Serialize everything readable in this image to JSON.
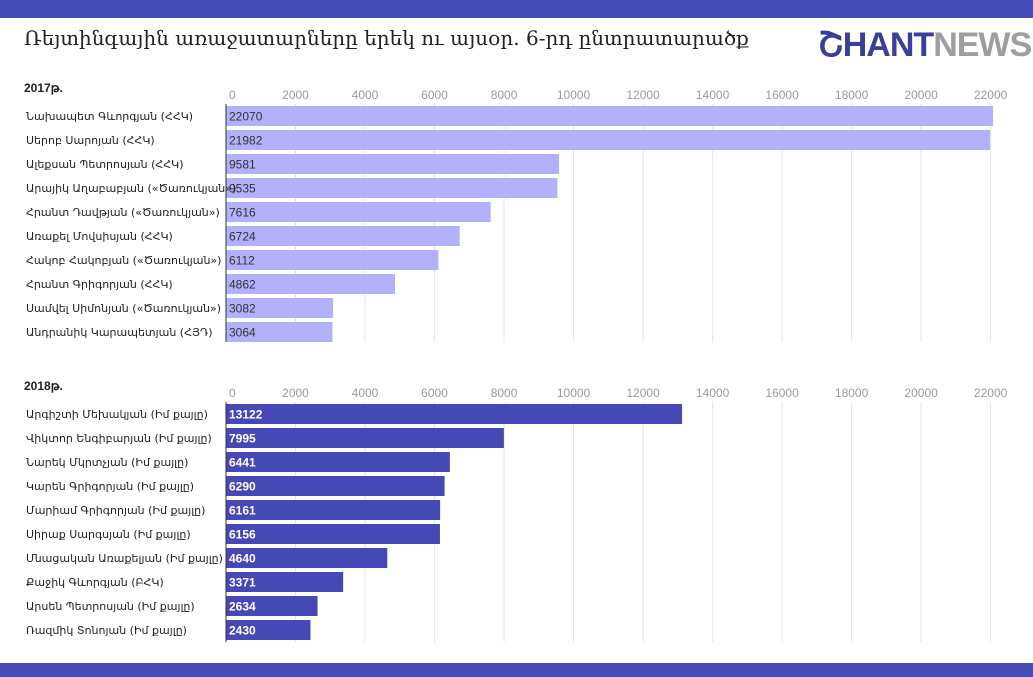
{
  "header": {
    "title": "Ռեյտինգային առաջատարները երեկ ու այսօր. 6-րդ ընտրատարածք",
    "logo_part1": "ՇHANT",
    "logo_part2": "NEWS"
  },
  "colors": {
    "bar_2017": "#b3b1fb",
    "bar_2018": "#4648b5",
    "top_bar": "#464cb7",
    "bottom_bar": "#464cb7",
    "grid": "#e6e6e6",
    "axis": "#333333",
    "value_2017": "#333333",
    "value_2018": "#ffffff"
  },
  "chart_data": [
    {
      "type": "bar",
      "orientation": "horizontal",
      "title": "2017թ.",
      "xlim": [
        0,
        22500
      ],
      "ticks": [
        0,
        2000,
        4000,
        6000,
        8000,
        10000,
        12000,
        14000,
        16000,
        18000,
        20000,
        22000
      ],
      "grid": true,
      "categories": [
        "Նախապետ Գևորգյան (ՀՀԿ)",
        "Սերոբ Սարոյան (ՀՀԿ)",
        "Ալեքսան Պետրոսյան (ՀՀԿ)",
        "Արայիկ Աղաբաբյան («Ծառուկյան»)",
        "Հրանտ Դավթյան («Ծառուկյան»)",
        "Առաքել Մովսիսյան (ՀՀԿ)",
        "Հակոբ Հակոբյան («Ծառուկյան»)",
        "Հրանտ Գրիգորյան (ՀՀԿ)",
        "Սամվել Սիմոնյան («Ծառուկյան»)",
        "Անդրանիկ Կարապետյան (ՀՅԴ)"
      ],
      "values": [
        22070,
        21982,
        9581,
        9535,
        7616,
        6724,
        6112,
        4862,
        3082,
        3064
      ]
    },
    {
      "type": "bar",
      "orientation": "horizontal",
      "title": "2018թ.",
      "xlim": [
        0,
        22500
      ],
      "ticks": [
        0,
        2000,
        4000,
        6000,
        8000,
        10000,
        12000,
        14000,
        16000,
        18000,
        20000,
        22000
      ],
      "grid": true,
      "categories": [
        "Արգիշտի Մեխակյան (Իմ քայլը)",
        "Վիկտոր Ենգիբարյան (Իմ քայլը)",
        "Նարեկ Մկրտչյան (Իմ քայլը)",
        "Կարեն Գրիգորյան (Իմ քայլը)",
        "Մարիամ Գրիգորյան (Իմ քայլը)",
        "Սիրաք Սարգսյան (Իմ քայլը)",
        "Մնացական Առաքելյան (Իմ քայլը)",
        "Քաջիկ Գևորգյան (ԲՀԿ)",
        "Արսեն Պետրոսյան (Իմ քայլը)",
        "Ռազմիկ Տոնոյան (Իմ քայլը)"
      ],
      "values": [
        13122,
        7995,
        6441,
        6290,
        6161,
        6156,
        4640,
        3371,
        2634,
        2430
      ]
    }
  ]
}
